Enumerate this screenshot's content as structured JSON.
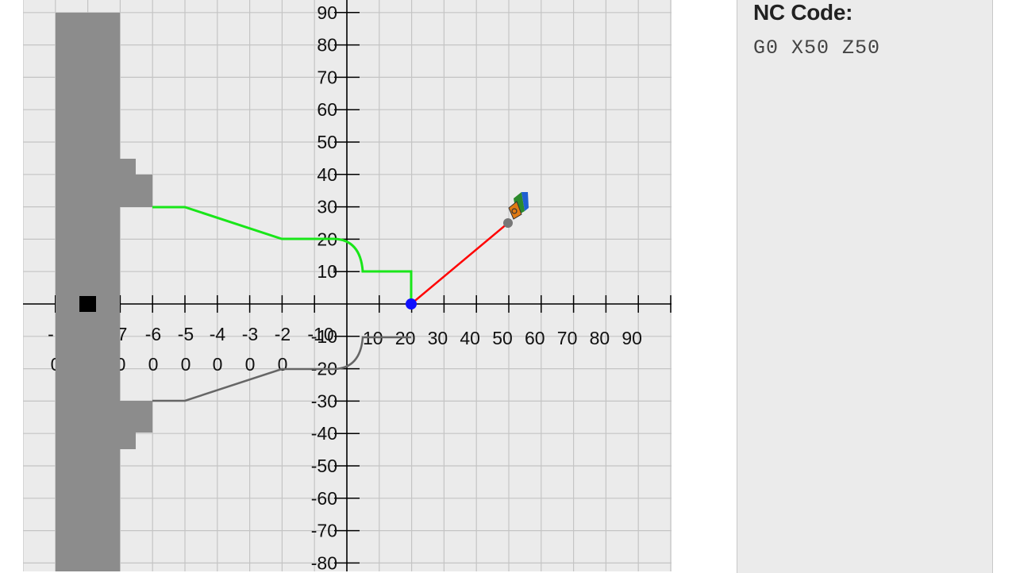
{
  "nc_panel": {
    "title": "NC Code:",
    "code": "G0 X50 Z50"
  },
  "simulator": {
    "colors": {
      "background": "#ebebeb",
      "grid": "#c4c4c4",
      "axis": "#000000",
      "stock": "#8c8c8c",
      "chuck_marker": "#000000",
      "contour_top": "#19e619",
      "contour_mirror": "#666666",
      "rapid_move": "#ff0000",
      "current_point": "#1010ff",
      "tool_tip": "#777777",
      "tool_holder": "#e07a14",
      "tool_insert_green": "#2c8a2c",
      "tool_insert_blue": "#1f5fd0"
    },
    "y_axis_labels": [
      "90",
      "80",
      "70",
      "60",
      "50",
      "40",
      "30",
      "20",
      "10",
      "-10",
      "-20",
      "-30",
      "-40",
      "-50",
      "-60",
      "-70",
      "-80"
    ],
    "x_axis_labels_pos": [
      "10",
      "20",
      "30",
      "40",
      "50",
      "60",
      "70",
      "80",
      "90"
    ],
    "x_axis_labels_neg_top": [
      "-",
      "7",
      "-6",
      "-5",
      "-4",
      "-3",
      "-2",
      "-10"
    ],
    "x_axis_labels_neg_bottom": [
      "0",
      "0",
      "0",
      "0",
      "0",
      "0",
      "0"
    ],
    "current_position": {
      "x": 20,
      "z": 0
    },
    "tool_position": {
      "x": 50,
      "z": 25
    }
  }
}
